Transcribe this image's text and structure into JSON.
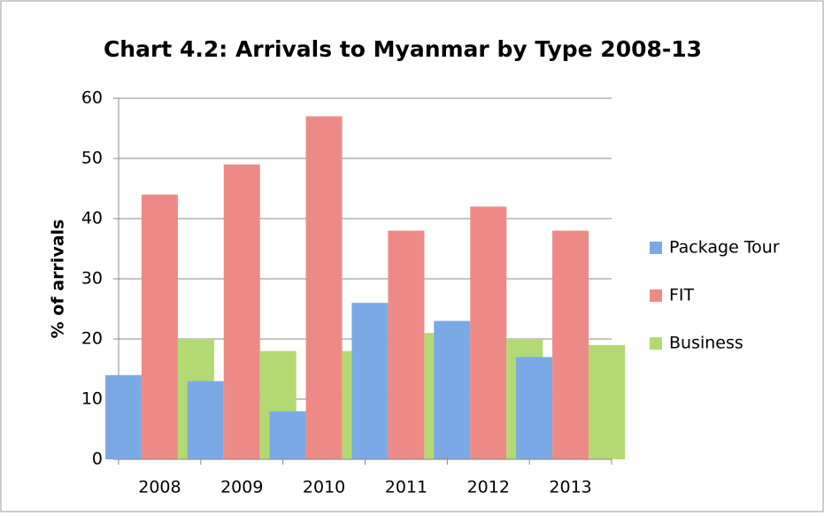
{
  "chart_data": {
    "type": "bar",
    "title": "Chart 4.2: Arrivals to Myanmar by Type 2008-13",
    "y_label": "% of arrivals",
    "categories": [
      "2008",
      "2009",
      "2010",
      "2011",
      "2012",
      "2013"
    ],
    "series": [
      {
        "name": "Package Tour",
        "color": "#7aa9e6",
        "values": [
          14,
          13,
          8,
          26,
          23,
          17
        ]
      },
      {
        "name": "FIT",
        "color": "#ee8a86",
        "values": [
          44,
          49,
          57,
          38,
          42,
          38
        ]
      },
      {
        "name": "Business",
        "color": "#b3da72",
        "values": [
          20,
          18,
          18,
          21,
          20,
          19
        ]
      }
    ],
    "ylim": [
      0,
      60
    ],
    "yticks": [
      0,
      10,
      20,
      30,
      40,
      50,
      60
    ],
    "grid": true,
    "legend": "right"
  }
}
